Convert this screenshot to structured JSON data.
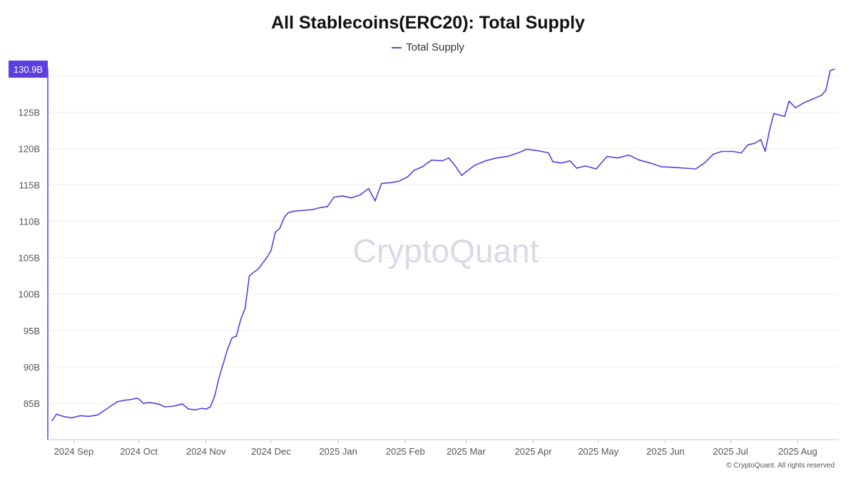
{
  "title": "All Stablecoins(ERC20): Total Supply",
  "legend": {
    "label": "Total Supply",
    "color": "#5b3fe0"
  },
  "watermark": "CryptoQuant",
  "footer": "© CryptoQuant. All rights reserved",
  "last_value_badge": "130.9B",
  "chart_data": {
    "type": "line",
    "title": "All Stablecoins(ERC20): Total Supply",
    "xlabel": "",
    "ylabel": "",
    "ylim": [
      80,
      131
    ],
    "y_ticks": [
      85,
      90,
      95,
      100,
      105,
      110,
      115,
      120,
      125
    ],
    "y_tick_labels": [
      "85B",
      "90B",
      "95B",
      "100B",
      "105B",
      "110B",
      "115B",
      "120B",
      "125B"
    ],
    "x_ticks": [
      "2024-09-01",
      "2024-10-01",
      "2024-11-01",
      "2024-12-01",
      "2025-01-01",
      "2025-02-01",
      "2025-03-01",
      "2025-04-01",
      "2025-05-01",
      "2025-06-01",
      "2025-07-01",
      "2025-08-01"
    ],
    "x_tick_labels": [
      "2024 Sep",
      "2024 Oct",
      "2024 Nov",
      "2024 Dec",
      "2025 Jan",
      "2025 Feb",
      "2025 Mar",
      "2025 Apr",
      "2025 May",
      "2025 Jun",
      "2025 Jul",
      "2025 Aug"
    ],
    "x_range": [
      "2024-08-20",
      "2025-08-20"
    ],
    "grid": true,
    "legend_position": "top-center",
    "series": [
      {
        "name": "Total Supply",
        "color": "#5b3fe0",
        "unit": "B",
        "points": [
          [
            "2024-08-22",
            82.6
          ],
          [
            "2024-08-24",
            83.5
          ],
          [
            "2024-08-27",
            83.2
          ],
          [
            "2024-08-31",
            83.0
          ],
          [
            "2024-09-04",
            83.3
          ],
          [
            "2024-09-08",
            83.2
          ],
          [
            "2024-09-12",
            83.4
          ],
          [
            "2024-09-15",
            84.0
          ],
          [
            "2024-09-18",
            84.6
          ],
          [
            "2024-09-21",
            85.2
          ],
          [
            "2024-09-24",
            85.4
          ],
          [
            "2024-09-27",
            85.5
          ],
          [
            "2024-09-30",
            85.7
          ],
          [
            "2024-10-01",
            85.6
          ],
          [
            "2024-10-03",
            85.0
          ],
          [
            "2024-10-06",
            85.1
          ],
          [
            "2024-10-10",
            84.9
          ],
          [
            "2024-10-13",
            84.5
          ],
          [
            "2024-10-17",
            84.6
          ],
          [
            "2024-10-21",
            84.9
          ],
          [
            "2024-10-24",
            84.2
          ],
          [
            "2024-10-27",
            84.1
          ],
          [
            "2024-10-30",
            84.3
          ],
          [
            "2024-11-01",
            84.2
          ],
          [
            "2024-11-03",
            84.5
          ],
          [
            "2024-11-05",
            86.0
          ],
          [
            "2024-11-07",
            88.5
          ],
          [
            "2024-11-09",
            90.5
          ],
          [
            "2024-11-11",
            92.5
          ],
          [
            "2024-11-13",
            94.0
          ],
          [
            "2024-11-15",
            94.2
          ],
          [
            "2024-11-17",
            96.5
          ],
          [
            "2024-11-19",
            98.0
          ],
          [
            "2024-11-21",
            102.5
          ],
          [
            "2024-11-23",
            103.0
          ],
          [
            "2024-11-25",
            103.4
          ],
          [
            "2024-11-27",
            104.2
          ],
          [
            "2024-11-29",
            105.0
          ],
          [
            "2024-12-01",
            106.0
          ],
          [
            "2024-12-03",
            108.5
          ],
          [
            "2024-12-05",
            109.0
          ],
          [
            "2024-12-07",
            110.5
          ],
          [
            "2024-12-09",
            111.2
          ],
          [
            "2024-12-12",
            111.4
          ],
          [
            "2024-12-16",
            111.5
          ],
          [
            "2024-12-20",
            111.6
          ],
          [
            "2024-12-24",
            111.9
          ],
          [
            "2024-12-27",
            112.0
          ],
          [
            "2024-12-30",
            113.3
          ],
          [
            "2025-01-03",
            113.5
          ],
          [
            "2025-01-07",
            113.2
          ],
          [
            "2025-01-11",
            113.6
          ],
          [
            "2025-01-15",
            114.5
          ],
          [
            "2025-01-18",
            112.8
          ],
          [
            "2025-01-21",
            115.2
          ],
          [
            "2025-01-25",
            115.3
          ],
          [
            "2025-01-29",
            115.5
          ],
          [
            "2025-02-02",
            116.1
          ],
          [
            "2025-02-05",
            117.0
          ],
          [
            "2025-02-09",
            117.5
          ],
          [
            "2025-02-13",
            118.4
          ],
          [
            "2025-02-18",
            118.3
          ],
          [
            "2025-02-21",
            118.7
          ],
          [
            "2025-02-24",
            117.6
          ],
          [
            "2025-02-27",
            116.3
          ],
          [
            "2025-03-01",
            116.8
          ],
          [
            "2025-03-05",
            117.7
          ],
          [
            "2025-03-10",
            118.3
          ],
          [
            "2025-03-15",
            118.7
          ],
          [
            "2025-03-20",
            118.9
          ],
          [
            "2025-03-25",
            119.4
          ],
          [
            "2025-03-29",
            119.9
          ],
          [
            "2025-04-03",
            119.7
          ],
          [
            "2025-04-08",
            119.4
          ],
          [
            "2025-04-10",
            118.2
          ],
          [
            "2025-04-14",
            118.0
          ],
          [
            "2025-04-18",
            118.3
          ],
          [
            "2025-04-21",
            117.3
          ],
          [
            "2025-04-25",
            117.6
          ],
          [
            "2025-04-30",
            117.2
          ],
          [
            "2025-05-05",
            118.9
          ],
          [
            "2025-05-10",
            118.7
          ],
          [
            "2025-05-15",
            119.1
          ],
          [
            "2025-05-20",
            118.4
          ],
          [
            "2025-05-25",
            118.0
          ],
          [
            "2025-05-30",
            117.5
          ],
          [
            "2025-06-05",
            117.4
          ],
          [
            "2025-06-10",
            117.3
          ],
          [
            "2025-06-15",
            117.2
          ],
          [
            "2025-06-19",
            118.0
          ],
          [
            "2025-06-23",
            119.2
          ],
          [
            "2025-06-27",
            119.6
          ],
          [
            "2025-07-02",
            119.6
          ],
          [
            "2025-07-06",
            119.4
          ],
          [
            "2025-07-09",
            120.5
          ],
          [
            "2025-07-12",
            120.7
          ],
          [
            "2025-07-15",
            121.2
          ],
          [
            "2025-07-17",
            119.6
          ],
          [
            "2025-07-19",
            122.5
          ],
          [
            "2025-07-21",
            124.8
          ],
          [
            "2025-07-26",
            124.4
          ],
          [
            "2025-07-28",
            126.5
          ],
          [
            "2025-07-31",
            125.6
          ],
          [
            "2025-08-04",
            126.3
          ],
          [
            "2025-08-08",
            126.8
          ],
          [
            "2025-08-12",
            127.3
          ],
          [
            "2025-08-14",
            128.0
          ],
          [
            "2025-08-16",
            130.7
          ],
          [
            "2025-08-18",
            130.9
          ]
        ]
      }
    ]
  }
}
